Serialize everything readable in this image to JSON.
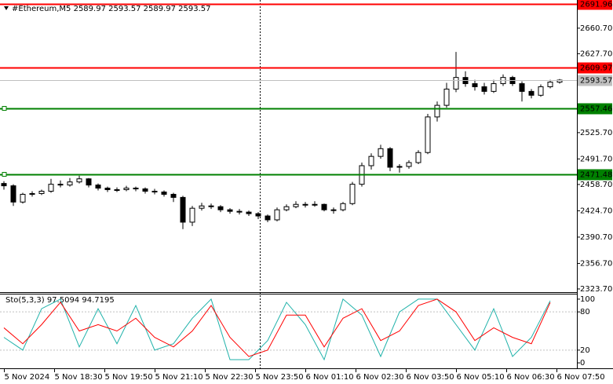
{
  "chart_data": [
    {
      "type": "candlestick",
      "title": "#Ethereum,M5  2589.97 2593.57 2589.97 2593.57",
      "x": [
        0,
        15,
        30,
        45,
        60,
        75,
        90,
        105,
        120,
        135,
        150,
        165,
        180,
        195,
        210,
        225,
        240,
        255,
        270,
        285,
        300,
        315,
        330,
        345,
        360,
        375,
        390,
        405,
        420,
        435,
        450,
        465,
        480,
        495,
        510,
        525,
        540,
        555,
        570,
        585,
        600,
        615,
        630,
        645,
        660,
        675,
        690,
        705,
        720,
        735,
        750,
        765,
        780,
        795,
        810,
        825,
        840,
        855,
        870,
        885
      ],
      "open": [
        2460,
        2457,
        2436,
        2446,
        2447,
        2450,
        2459,
        2458,
        2462,
        2466,
        2458,
        2454,
        2452,
        2452,
        2454,
        2453,
        2450,
        2449,
        2446,
        2442,
        2410,
        2428,
        2431,
        2430,
        2426,
        2424,
        2423,
        2421,
        2418,
        2413,
        2426,
        2430,
        2433,
        2432,
        2433,
        2426,
        2426,
        2434,
        2459,
        2483,
        2495,
        2505,
        2481,
        2482,
        2487,
        2500,
        2546,
        2561,
        2582,
        2597,
        2589,
        2585,
        2579,
        2589,
        2597,
        2589,
        2579,
        2574,
        2585,
        2591
      ],
      "high": [
        2463,
        2459,
        2448,
        2450,
        2452,
        2466,
        2464,
        2467,
        2470,
        2467,
        2460,
        2456,
        2455,
        2457,
        2456,
        2455,
        2453,
        2451,
        2448,
        2444,
        2431,
        2435,
        2434,
        2432,
        2428,
        2427,
        2425,
        2423,
        2420,
        2429,
        2433,
        2437,
        2436,
        2437,
        2434,
        2429,
        2436,
        2462,
        2487,
        2499,
        2510,
        2507,
        2485,
        2490,
        2503,
        2550,
        2566,
        2590,
        2630,
        2605,
        2594,
        2590,
        2594,
        2601,
        2599,
        2592,
        2582,
        2588,
        2594,
        2595
      ],
      "low": [
        2452,
        2431,
        2434,
        2443,
        2445,
        2448,
        2455,
        2456,
        2460,
        2455,
        2451,
        2449,
        2449,
        2450,
        2450,
        2447,
        2446,
        2443,
        2436,
        2401,
        2405,
        2425,
        2427,
        2423,
        2421,
        2420,
        2418,
        2414,
        2410,
        2411,
        2424,
        2428,
        2429,
        2430,
        2424,
        2421,
        2424,
        2432,
        2456,
        2478,
        2492,
        2476,
        2474,
        2479,
        2485,
        2498,
        2540,
        2558,
        2578,
        2585,
        2580,
        2575,
        2577,
        2586,
        2586,
        2566,
        2570,
        2572,
        2583,
        2589
      ],
      "close": [
        2457,
        2436,
        2446,
        2447,
        2450,
        2459,
        2458,
        2462,
        2466,
        2458,
        2454,
        2452,
        2452,
        2454,
        2453,
        2450,
        2449,
        2446,
        2442,
        2410,
        2428,
        2431,
        2430,
        2426,
        2424,
        2423,
        2421,
        2418,
        2413,
        2426,
        2430,
        2433,
        2432,
        2433,
        2426,
        2426,
        2434,
        2459,
        2483,
        2495,
        2505,
        2481,
        2482,
        2487,
        2500,
        2546,
        2561,
        2582,
        2597,
        2589,
        2585,
        2579,
        2589,
        2597,
        2589,
        2579,
        2574,
        2585,
        2591,
        2593.57
      ],
      "xlim": [
        -6.25,
        912.5
      ],
      "ylim": [
        2319.6,
        2697.1
      ],
      "yticks": [
        {
          "value": 2323.7,
          "label": "2323.70"
        },
        {
          "value": 2356.7,
          "label": "2356.70"
        },
        {
          "value": 2390.7,
          "label": "2390.70"
        },
        {
          "value": 2424.7,
          "label": "2424.70"
        },
        {
          "value": 2458.7,
          "label": "2458.70"
        },
        {
          "value": 2491.7,
          "label": "2491.70"
        },
        {
          "value": 2525.7,
          "label": "2525.70"
        },
        {
          "value": 2627.7,
          "label": "2627.70"
        },
        {
          "value": 2660.7,
          "label": "2660.70"
        }
      ],
      "levels": [
        {
          "value": 2691.96,
          "color": "#ff0000"
        },
        {
          "value": 2609.97,
          "color": "#ff0000"
        },
        {
          "value": 2593.57,
          "color": "#c0c0c0"
        },
        {
          "value": 2557.46,
          "color": "#008000"
        },
        {
          "value": 2471.48,
          "color": "#008000"
        }
      ]
    },
    {
      "type": "line",
      "title": "Sto(5,3,3) 97.5094 94.7195",
      "x": [
        0,
        30,
        60,
        90,
        120,
        150,
        180,
        210,
        240,
        270,
        300,
        330,
        360,
        390,
        420,
        450,
        480,
        510,
        540,
        570,
        600,
        630,
        660,
        690,
        720,
        750,
        780,
        810,
        840,
        870
      ],
      "series": [
        {
          "color": "#20b2aa",
          "values": [
            40,
            20,
            85,
            100,
            25,
            85,
            30,
            90,
            20,
            30,
            70,
            100,
            5,
            5,
            35,
            95,
            60,
            5,
            100,
            75,
            10,
            80,
            100,
            100,
            60,
            20,
            85,
            10,
            40,
            97.5094
          ]
        },
        {
          "color": "#ff0000",
          "values": [
            55,
            30,
            60,
            95,
            50,
            60,
            50,
            70,
            40,
            25,
            50,
            90,
            40,
            10,
            20,
            75,
            75,
            25,
            70,
            85,
            35,
            50,
            90,
            100,
            80,
            35,
            55,
            40,
            30,
            94.7195
          ]
        }
      ],
      "xlim": [
        -6.25,
        912.5
      ],
      "ylim": [
        -7.3,
        107.3
      ],
      "yticks": [
        0,
        20,
        80,
        100
      ],
      "xticks": [
        {
          "value": 0,
          "label": "5 Nov 2024"
        },
        {
          "value": 80,
          "label": "5 Nov 18:30"
        },
        {
          "value": 160,
          "label": "5 Nov 19:50"
        },
        {
          "value": 240,
          "label": "5 Nov 21:10"
        },
        {
          "value": 320,
          "label": "5 Nov 22:30"
        },
        {
          "value": 400,
          "label": "5 Nov 23:50"
        },
        {
          "value": 480,
          "label": "6 Nov 01:10"
        },
        {
          "value": 560,
          "label": "6 Nov 02:30"
        },
        {
          "value": 640,
          "label": "6 Nov 03:50"
        },
        {
          "value": 720,
          "label": "6 Nov 05:10"
        },
        {
          "value": 800,
          "label": "6 Nov 06:30"
        },
        {
          "value": 880,
          "label": "6 Nov 07:50"
        }
      ]
    }
  ]
}
